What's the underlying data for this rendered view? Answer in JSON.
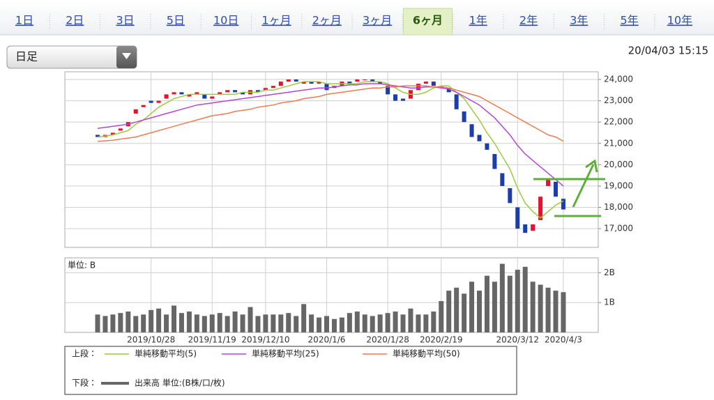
{
  "tabs": [
    {
      "label": "1日"
    },
    {
      "label": "2日"
    },
    {
      "label": "3日"
    },
    {
      "label": "5日"
    },
    {
      "label": "10日"
    },
    {
      "label": "1ヶ月"
    },
    {
      "label": "2ヶ月"
    },
    {
      "label": "3ヶ月"
    },
    {
      "label": "6ヶ月",
      "selected": true
    },
    {
      "label": "1年"
    },
    {
      "label": "2年"
    },
    {
      "label": "3年"
    },
    {
      "label": "5年"
    },
    {
      "label": "10年"
    }
  ],
  "dropdown": "日足",
  "timestamp": "20/04/03 15:15",
  "legend": {
    "upper": "上段：",
    "lower": "下段："
  },
  "chart_data": [
    {
      "type": "candlestick",
      "up_color": "#e8102a",
      "down_color": "#1c3ea8",
      "open": [
        21400,
        21300,
        21400,
        21600,
        21800,
        22400,
        22700,
        23000,
        22900,
        23100,
        23300,
        23400,
        23200,
        23300,
        23300,
        23100,
        23300,
        23400,
        23500,
        23400,
        23300,
        23500,
        23500,
        23600,
        23700,
        23900,
        24000,
        23800,
        23900,
        23800,
        23800,
        23600,
        23700,
        23900,
        23900,
        24000,
        24000,
        23900,
        23700,
        23300,
        23100,
        23100,
        23500,
        23800,
        23900,
        23700,
        23600,
        23300,
        22500,
        21900,
        21400,
        21000,
        20500,
        19600,
        18900,
        18000,
        17200,
        16900,
        17400,
        19000,
        19200,
        18400
      ],
      "close": [
        21300,
        21400,
        21500,
        21700,
        22000,
        22600,
        22800,
        22900,
        23000,
        23300,
        23400,
        23300,
        23300,
        23400,
        23100,
        23200,
        23400,
        23500,
        23400,
        23300,
        23500,
        23400,
        23600,
        23700,
        23900,
        24000,
        23900,
        23900,
        23800,
        23900,
        23500,
        23700,
        23900,
        23800,
        24000,
        24000,
        23900,
        23800,
        23300,
        23000,
        23000,
        23500,
        23800,
        23900,
        23700,
        23600,
        23400,
        22600,
        22000,
        21300,
        21100,
        20700,
        19800,
        19000,
        18200,
        17000,
        16800,
        17200,
        18500,
        19300,
        18500,
        17900
      ],
      "series": [
        {
          "name": "単純移動平均(5)",
          "color": "#9ccc3c",
          "values": [
            21300,
            21350,
            21400,
            21500,
            21600,
            21900,
            22100,
            22400,
            22700,
            22900,
            23100,
            23200,
            23300,
            23300,
            23300,
            23300,
            23300,
            23300,
            23300,
            23400,
            23400,
            23400,
            23500,
            23500,
            23600,
            23700,
            23800,
            23900,
            23900,
            23900,
            23800,
            23800,
            23800,
            23800,
            23800,
            23900,
            23900,
            23900,
            23800,
            23600,
            23400,
            23300,
            23300,
            23400,
            23600,
            23700,
            23700,
            23400,
            23100,
            22600,
            22100,
            21500,
            21000,
            20400,
            19800,
            18900,
            18200,
            17800,
            17500,
            17800,
            18100,
            18300
          ]
        },
        {
          "name": "単純移動平均(25)",
          "color": "#b446d6",
          "values": [
            21700,
            21750,
            21800,
            21850,
            21900,
            22000,
            22100,
            22200,
            22300,
            22400,
            22500,
            22600,
            22700,
            22800,
            22850,
            22900,
            22950,
            23000,
            23050,
            23100,
            23150,
            23200,
            23250,
            23300,
            23350,
            23400,
            23450,
            23500,
            23550,
            23600,
            23600,
            23650,
            23700,
            23750,
            23750,
            23800,
            23800,
            23800,
            23750,
            23700,
            23650,
            23600,
            23600,
            23650,
            23650,
            23600,
            23550,
            23400,
            23200,
            23000,
            22800,
            22500,
            22200,
            21800,
            21400,
            20900,
            20500,
            20200,
            19900,
            19600,
            19300,
            19000
          ]
        },
        {
          "name": "単純移動平均(50)",
          "color": "#f07a52",
          "values": [
            21100,
            21120,
            21150,
            21200,
            21250,
            21300,
            21400,
            21500,
            21600,
            21700,
            21800,
            21900,
            22000,
            22100,
            22200,
            22300,
            22350,
            22400,
            22500,
            22550,
            22600,
            22700,
            22750,
            22800,
            22900,
            22950,
            23000,
            23100,
            23150,
            23200,
            23300,
            23350,
            23400,
            23450,
            23500,
            23550,
            23600,
            23600,
            23650,
            23650,
            23700,
            23700,
            23700,
            23700,
            23650,
            23650,
            23600,
            23500,
            23400,
            23300,
            23200,
            23000,
            22800,
            22600,
            22400,
            22200,
            22000,
            21800,
            21600,
            21400,
            21300,
            21100
          ]
        }
      ],
      "ylim": [
        16120,
        24360
      ],
      "yticks": [
        {
          "value": 17000,
          "label": "17,000"
        },
        {
          "value": 18000,
          "label": "18,000"
        },
        {
          "value": 19000,
          "label": "19,000"
        },
        {
          "value": 20000,
          "label": "20,000"
        },
        {
          "value": 21000,
          "label": "21,000"
        },
        {
          "value": 22000,
          "label": "22,000"
        },
        {
          "value": 23000,
          "label": "23,000"
        },
        {
          "value": 24000,
          "label": "24,000"
        }
      ],
      "grid": true
    },
    {
      "type": "bar",
      "title": "単位: B",
      "categories": [
        null,
        null,
        null,
        null,
        null,
        null,
        null,
        "2019/10/28",
        null,
        null,
        null,
        null,
        null,
        null,
        null,
        "2019/11/19",
        null,
        null,
        null,
        null,
        null,
        null,
        "2019/12/10",
        null,
        null,
        null,
        null,
        null,
        null,
        null,
        "2020/1/6",
        null,
        null,
        null,
        null,
        null,
        null,
        null,
        "2020/1/28",
        null,
        null,
        null,
        null,
        null,
        null,
        "2020/2/19",
        null,
        null,
        null,
        null,
        null,
        null,
        null,
        null,
        null,
        "2020/3/12",
        null,
        null,
        null,
        null,
        null,
        "2020/4/3"
      ],
      "series": [
        {
          "name": "出来高 単位:(B株/口/枚)",
          "color": "#666666",
          "values": [
            0.6,
            0.55,
            0.6,
            0.65,
            0.7,
            0.55,
            0.6,
            0.75,
            0.8,
            0.6,
            0.9,
            0.65,
            0.7,
            0.6,
            0.55,
            0.6,
            0.65,
            0.55,
            0.7,
            0.6,
            0.85,
            0.55,
            0.6,
            0.6,
            0.6,
            0.65,
            0.55,
            0.95,
            0.6,
            0.5,
            0.55,
            0.45,
            0.5,
            0.65,
            0.7,
            0.6,
            0.55,
            0.6,
            0.65,
            0.7,
            0.6,
            0.8,
            0.6,
            0.6,
            0.7,
            1.05,
            1.4,
            1.5,
            1.3,
            1.7,
            1.4,
            1.9,
            1.7,
            2.3,
            1.9,
            2.1,
            2.2,
            1.7,
            1.6,
            1.5,
            1.4,
            1.35
          ]
        }
      ],
      "ylim": [
        0,
        2.5
      ],
      "yticks": [
        {
          "value": 1,
          "label": "1B"
        },
        {
          "value": 2,
          "label": "2B"
        }
      ],
      "grid": true
    }
  ]
}
